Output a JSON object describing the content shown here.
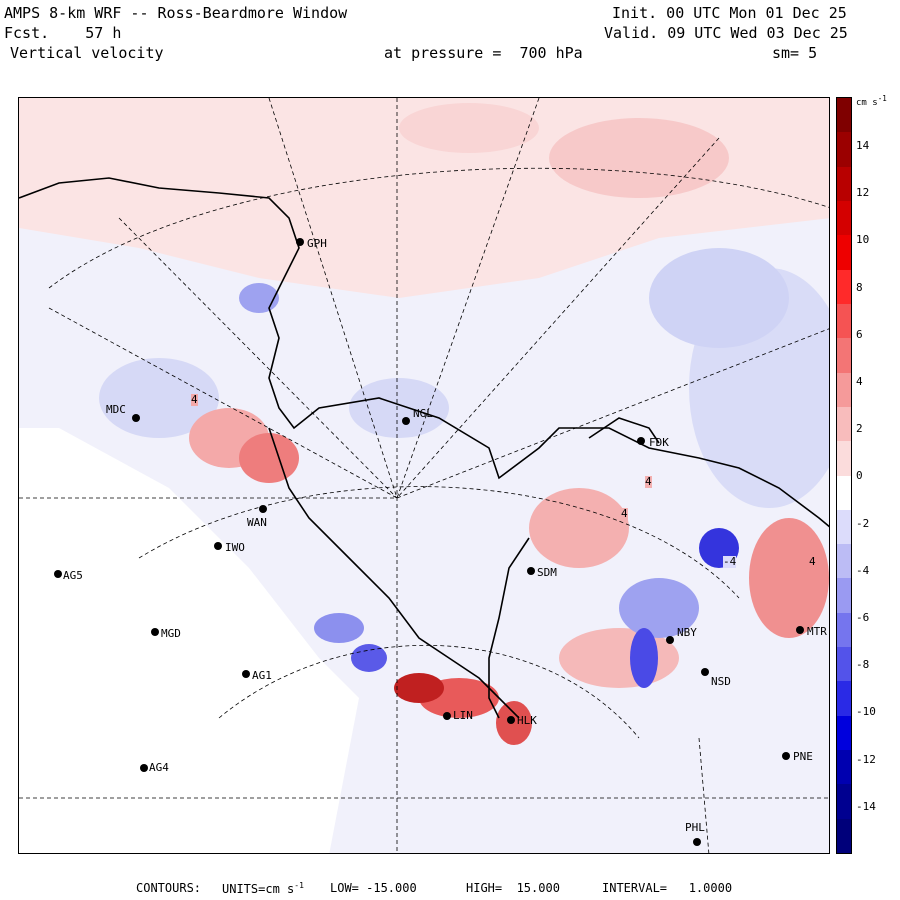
{
  "header": {
    "model": "AMPS 8-km WRF -- Ross-Beardmore Window",
    "init": "Init. 00 UTC Mon 01 Dec 25",
    "fcst": "Fcst.    57 h",
    "valid": "Valid. 09 UTC Wed 03 Dec 25",
    "variable": "Vertical velocity",
    "level": "at pressure =  700 hPa",
    "smooth": "sm= 5"
  },
  "colorbar": {
    "units_label": "cm s",
    "units_exp": "-1",
    "ticks": [
      "14",
      "12",
      "10",
      "8",
      "6",
      "4",
      "2",
      "0",
      "-2",
      "-4",
      "-6",
      "-8",
      "-10",
      "-12",
      "-14"
    ],
    "colors": [
      "#7f0000",
      "#9b0000",
      "#b80000",
      "#d40000",
      "#ee0000",
      "#ff2a2a",
      "#f55353",
      "#f37575",
      "#f59a9a",
      "#f8bcbc",
      "#fbdcdc",
      "#ffffff",
      "#dcdcfb",
      "#bcbcf5",
      "#9a9af2",
      "#7575ee",
      "#5353ea",
      "#2a2ae6",
      "#0000dd",
      "#0000b0",
      "#000090",
      "#00007a"
    ]
  },
  "stations": [
    {
      "label": "GPH"
    },
    {
      "label": "MDC"
    },
    {
      "label": "NGL"
    },
    {
      "label": "FDK"
    },
    {
      "label": "WAN"
    },
    {
      "label": "IWO"
    },
    {
      "label": "AG5"
    },
    {
      "label": "SDM"
    },
    {
      "label": "MGD"
    },
    {
      "label": "NBY"
    },
    {
      "label": "MTR"
    },
    {
      "label": "AG1"
    },
    {
      "label": "NSD"
    },
    {
      "label": "LIN"
    },
    {
      "label": "HLK"
    },
    {
      "label": "AG4"
    },
    {
      "label": "PNE"
    },
    {
      "label": "PHL"
    }
  ],
  "contour_labels": [
    "4",
    "4",
    "4",
    "-4",
    "4"
  ],
  "footer": {
    "contours": "CONTOURS:",
    "units_text": "UNITS=cm s",
    "units_exp": "-1",
    "low": "LOW= -15.000",
    "high": "HIGH=  15.000",
    "interval": "INTERVAL=   1.0000"
  }
}
